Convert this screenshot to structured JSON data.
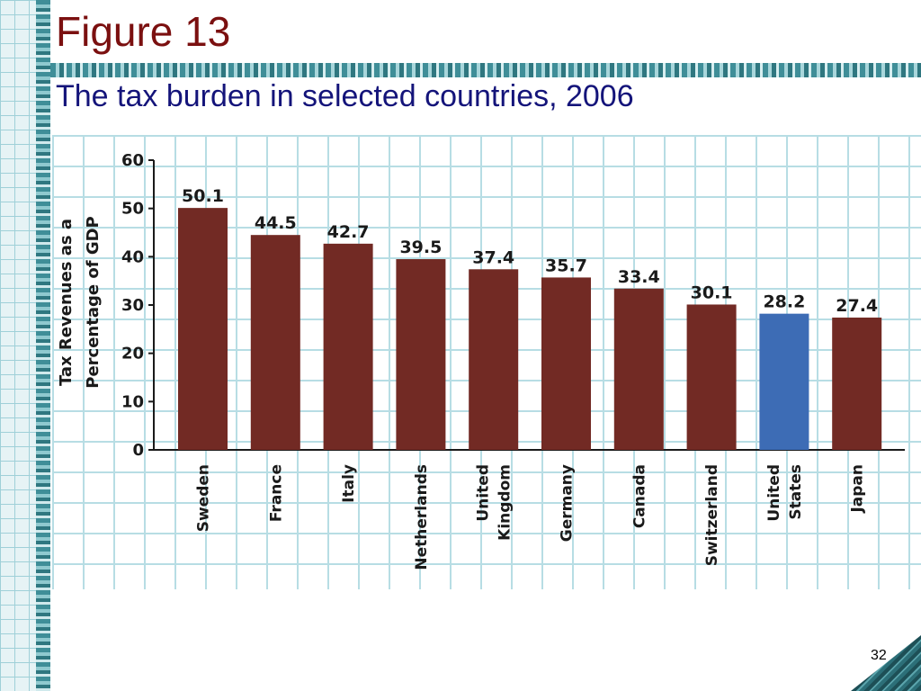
{
  "slide": {
    "title": "Figure 13",
    "subtitle": "The tax burden in selected countries, 2006",
    "page_number": "32"
  },
  "colors": {
    "bar": "#722a24",
    "highlight": "#3d6cb5",
    "title": "#7b1010",
    "subtitle": "#14147a"
  },
  "chart_data": {
    "type": "bar",
    "title": "",
    "ylabel": "Tax Revenues as a Percentage of GDP",
    "xlabel": "",
    "ylim": [
      0,
      60
    ],
    "yticks": [
      0,
      10,
      20,
      30,
      40,
      50,
      60
    ],
    "categories": [
      "Sweden",
      "France",
      "Italy",
      "Netherlands",
      "United Kingdom",
      "Germany",
      "Canada",
      "Switzerland",
      "United States",
      "Japan"
    ],
    "values": [
      50.1,
      44.5,
      42.7,
      39.5,
      37.4,
      35.7,
      33.4,
      30.1,
      28.2,
      27.4
    ],
    "value_labels": [
      "50.1",
      "44.5",
      "42.7",
      "39.5",
      "37.4",
      "35.7",
      "33.4",
      "30.1",
      "28.2",
      "27.4"
    ],
    "highlight_category": "United States",
    "grid": true
  }
}
